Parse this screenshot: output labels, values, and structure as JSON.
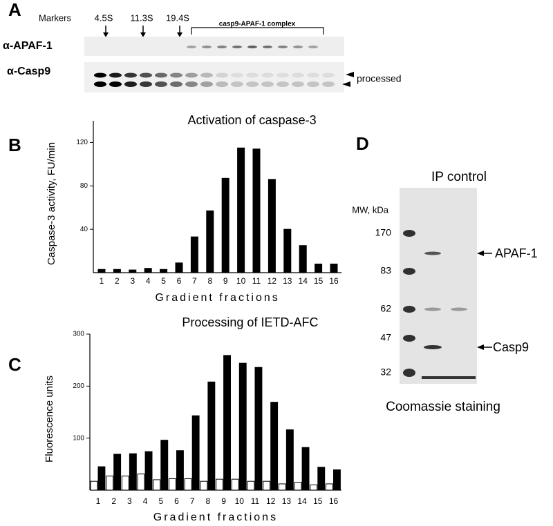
{
  "panel_a": {
    "letter": "A",
    "markers_label": "Markers",
    "markers": [
      "4.5S",
      "11.3S",
      "19.4S"
    ],
    "complex_label": "casp9-APAF-1 complex",
    "rows": [
      "α-APAF-1",
      "α-Casp9"
    ],
    "band_label": "processed"
  },
  "chart_data": [
    {
      "type": "bar",
      "panel_label": "B",
      "title": "Activation of caspase-3",
      "y_label": "Caspase-3 activity, FU/min",
      "x_label": "Gradient fractions",
      "categories": [
        "1",
        "2",
        "3",
        "4",
        "5",
        "6",
        "7",
        "8",
        "9",
        "10",
        "11",
        "12",
        "13",
        "14",
        "15",
        "16"
      ],
      "series": [
        {
          "color": "#000000",
          "values": [
            3,
            3,
            2.5,
            4,
            3,
            9,
            33,
            57,
            87,
            115,
            114,
            86,
            40,
            25,
            8,
            8
          ]
        }
      ],
      "ylim": [
        0,
        140
      ],
      "yticks": [
        40,
        80,
        120
      ]
    },
    {
      "type": "bar",
      "panel_label": "C",
      "title": "Processing of IETD-AFC",
      "y_label": "Fluorescence units",
      "x_label": "Gradient fractions",
      "categories": [
        "1",
        "2",
        "3",
        "4",
        "5",
        "6",
        "7",
        "8",
        "9",
        "10",
        "11",
        "12",
        "13",
        "14",
        "15",
        "16"
      ],
      "series": [
        {
          "color": "#ffffff",
          "values": [
            17,
            27,
            27,
            31,
            20,
            22,
            22,
            17,
            21,
            21,
            17,
            17,
            12,
            15,
            10,
            12
          ]
        },
        {
          "color": "#000000",
          "values": [
            45,
            69,
            70,
            74,
            96,
            76,
            143,
            208,
            259,
            244,
            236,
            169,
            116,
            82,
            44,
            39
          ]
        }
      ],
      "ylim": [
        0,
        300
      ],
      "yticks": [
        100,
        200,
        300
      ]
    }
  ],
  "panel_d": {
    "letter": "D",
    "title": "IP control",
    "mw_label": "MW, kDa",
    "mw": [
      170,
      83,
      62,
      47,
      32
    ],
    "bands": [
      "APAF-1",
      "Casp9"
    ],
    "caption": "Coomassie staining"
  }
}
